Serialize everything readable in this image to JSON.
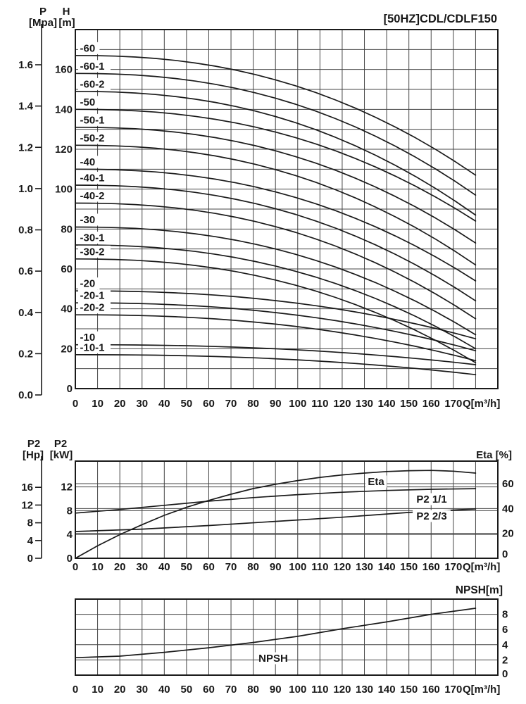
{
  "page": {
    "background": "#ffffff",
    "ink": "#1a1a1a",
    "grid_color": "#454545"
  },
  "chart_data": [
    {
      "id": "head_flow",
      "type": "line",
      "title": "[50HZ]CDL/CDLF150",
      "x_axis": {
        "label": "Q[m³/h]",
        "min": 0,
        "max": 190,
        "grid_step": 10,
        "tick_labels": [
          "0",
          "10",
          "20",
          "30",
          "40",
          "50",
          "60",
          "70",
          "80",
          "90",
          "100",
          "110",
          "120",
          "130",
          "140",
          "150",
          "160",
          "170"
        ]
      },
      "y_axis_pressure": {
        "name": "P",
        "unit": "[Mpa]",
        "min": 0.0,
        "max": 1.6,
        "ticks": [
          "1.6",
          "1.4",
          "1.2",
          "1.0",
          "0.8",
          "0.6",
          "0.4",
          "0.2",
          "0.0"
        ]
      },
      "y_axis_head": {
        "name": "H",
        "unit": "[m]",
        "min": 0,
        "max": 180,
        "ticks": [
          "160",
          "140",
          "120",
          "100",
          "80",
          "60",
          "40",
          "20",
          "0"
        ]
      },
      "max_flow_m3h": 180,
      "curves": [
        {
          "label": "-60",
          "shutoff_head_m": 167,
          "head_at_max_flow_m": 107
        },
        {
          "label": "-60-1",
          "shutoff_head_m": 158,
          "head_at_max_flow_m": 97
        },
        {
          "label": "-60-2",
          "shutoff_head_m": 149,
          "head_at_max_flow_m": 87
        },
        {
          "label": "-50",
          "shutoff_head_m": 140,
          "head_at_max_flow_m": 84
        },
        {
          "label": "-50-1",
          "shutoff_head_m": 131,
          "head_at_max_flow_m": 73
        },
        {
          "label": "-50-2",
          "shutoff_head_m": 122,
          "head_at_max_flow_m": 62
        },
        {
          "label": "-40",
          "shutoff_head_m": 110,
          "head_at_max_flow_m": 54
        },
        {
          "label": "-40-1",
          "shutoff_head_m": 102,
          "head_at_max_flow_m": 44
        },
        {
          "label": "-40-2",
          "shutoff_head_m": 93,
          "head_at_max_flow_m": 35
        },
        {
          "label": "-30",
          "shutoff_head_m": 81,
          "head_at_max_flow_m": 27
        },
        {
          "label": "-30-1",
          "shutoff_head_m": 72,
          "head_at_max_flow_m": 20
        },
        {
          "label": "-30-2",
          "shutoff_head_m": 65,
          "head_at_max_flow_m": 13
        },
        {
          "label": "-20",
          "shutoff_head_m": 49,
          "head_at_max_flow_m": 25
        },
        {
          "label": "-20-1",
          "shutoff_head_m": 43,
          "head_at_max_flow_m": 19
        },
        {
          "label": "-20-2",
          "shutoff_head_m": 37,
          "head_at_max_flow_m": 14
        },
        {
          "label": "-10",
          "shutoff_head_m": 22,
          "head_at_max_flow_m": 12
        },
        {
          "label": "-10-1",
          "shutoff_head_m": 17,
          "head_at_max_flow_m": 7
        }
      ]
    },
    {
      "id": "power_efficiency",
      "type": "line",
      "x_axis": {
        "label": "Q[m³/h]",
        "min": 0,
        "max": 190,
        "grid_step": 10,
        "tick_labels": [
          "0",
          "10",
          "20",
          "30",
          "40",
          "50",
          "60",
          "70",
          "80",
          "90",
          "100",
          "110",
          "120",
          "130",
          "140",
          "150",
          "160",
          "170"
        ]
      },
      "y_axis_hp": {
        "name": "P2",
        "unit": "[Hp]",
        "ticks": [
          "16",
          "12",
          "8",
          "4",
          "0"
        ]
      },
      "y_axis_kw": {
        "name": "P2",
        "unit": "[kW]",
        "ticks": [
          "12",
          "8",
          "4",
          "0"
        ]
      },
      "y_axis_eta": {
        "label": "Eta [%]",
        "ticks": [
          "60",
          "40",
          "20",
          "0"
        ]
      },
      "series": [
        {
          "name": "Eta",
          "unit": "%",
          "points": [
            [
              0,
              0
            ],
            [
              10,
              10
            ],
            [
              20,
              19
            ],
            [
              30,
              27
            ],
            [
              40,
              34.5
            ],
            [
              50,
              41
            ],
            [
              60,
              46.5
            ],
            [
              70,
              51.5
            ],
            [
              80,
              56
            ],
            [
              90,
              59.5
            ],
            [
              100,
              62.5
            ],
            [
              110,
              65
            ],
            [
              120,
              67
            ],
            [
              130,
              68.5
            ],
            [
              140,
              69.7
            ],
            [
              150,
              70.4
            ],
            [
              160,
              70.6
            ],
            [
              170,
              70
            ],
            [
              180,
              68.5
            ]
          ]
        },
        {
          "name": "P2 1/1",
          "unit": "kW",
          "points": [
            [
              0,
              7.6
            ],
            [
              20,
              8.2
            ],
            [
              40,
              8.9
            ],
            [
              60,
              9.6
            ],
            [
              80,
              10.2
            ],
            [
              100,
              10.7
            ],
            [
              120,
              11.1
            ],
            [
              140,
              11.4
            ],
            [
              160,
              11.6
            ],
            [
              180,
              11.7
            ]
          ]
        },
        {
          "name": "P2 2/3",
          "unit": "kW",
          "points": [
            [
              0,
              4.5
            ],
            [
              30,
              4.9
            ],
            [
              60,
              5.5
            ],
            [
              90,
              6.2
            ],
            [
              120,
              6.9
            ],
            [
              150,
              7.7
            ],
            [
              180,
              8.3
            ]
          ]
        }
      ]
    },
    {
      "id": "npsh",
      "type": "line",
      "title": "NPSH[m]",
      "x_axis": {
        "label": "Q[m³/h]",
        "min": 0,
        "max": 190,
        "grid_step": 10,
        "tick_labels": [
          "0",
          "10",
          "20",
          "30",
          "40",
          "50",
          "60",
          "70",
          "80",
          "90",
          "100",
          "110",
          "120",
          "130",
          "140",
          "150",
          "160",
          "170"
        ]
      },
      "y_axis_npsh": {
        "min": 0,
        "max": 10,
        "grid_step": 2,
        "ticks": [
          "8",
          "6",
          "4",
          "2",
          "0"
        ]
      },
      "series": [
        {
          "name": "NPSH",
          "unit": "m",
          "points": [
            [
              0,
              2.3
            ],
            [
              20,
              2.5
            ],
            [
              40,
              3.0
            ],
            [
              60,
              3.6
            ],
            [
              80,
              4.3
            ],
            [
              100,
              5.1
            ],
            [
              120,
              6.1
            ],
            [
              140,
              7.0
            ],
            [
              160,
              8.0
            ],
            [
              180,
              8.8
            ]
          ]
        }
      ]
    }
  ]
}
